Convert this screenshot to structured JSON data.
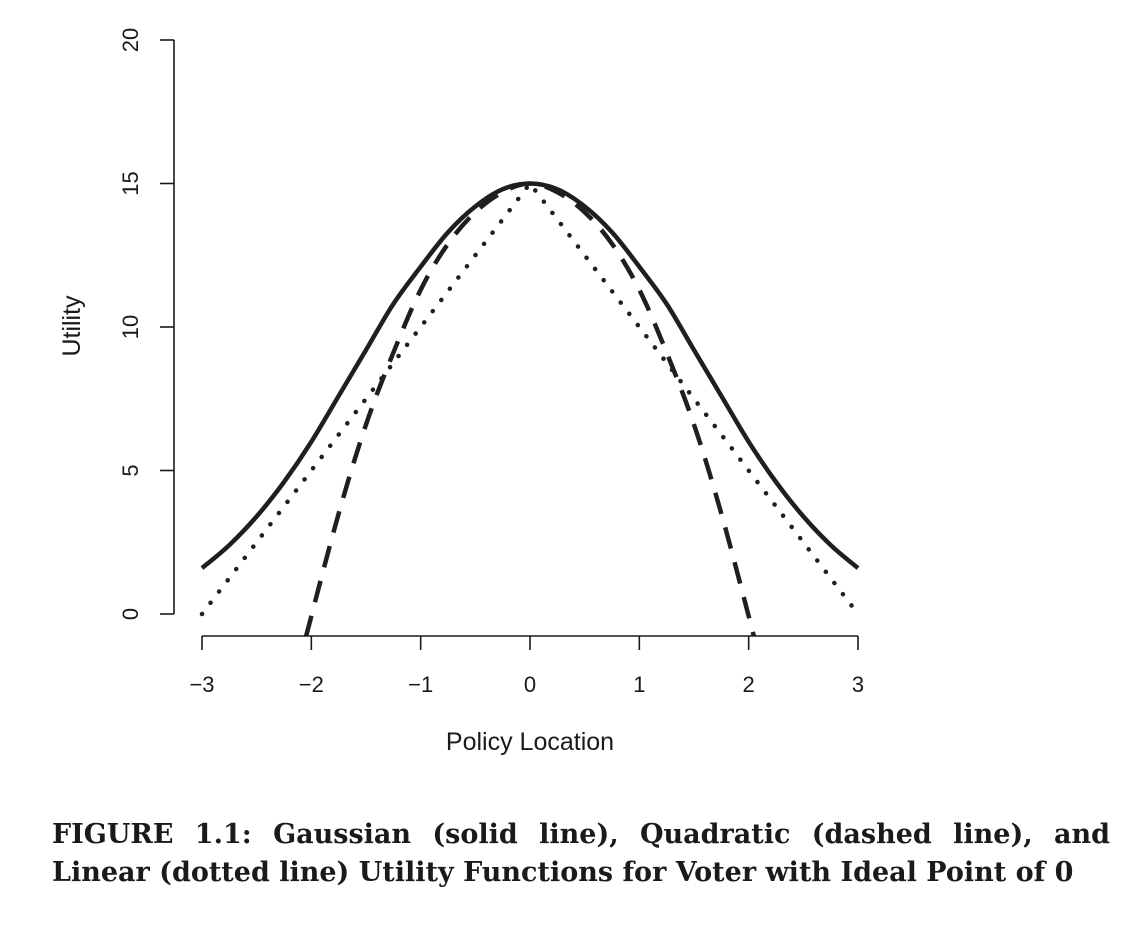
{
  "chart_data": {
    "type": "line",
    "xlabel": "Policy Location",
    "ylabel": "Utility",
    "xlim": [
      -3,
      3
    ],
    "ylim": [
      0,
      20
    ],
    "x_ticks": [
      -3,
      -2,
      -1,
      0,
      1,
      2,
      3
    ],
    "x_tick_labels": [
      "−3",
      "−2",
      "−1",
      "0",
      "1",
      "2",
      "3"
    ],
    "y_ticks": [
      0,
      5,
      10,
      15,
      20
    ],
    "y_tick_labels": [
      "0",
      "5",
      "10",
      "15",
      "20"
    ],
    "grid": false,
    "legend": "none",
    "series": [
      {
        "style": "solid",
        "x": [
          -3,
          -2.75,
          -2.5,
          -2.25,
          -2,
          -1.75,
          -1.5,
          -1.25,
          -1,
          -0.75,
          -0.5,
          -0.25,
          0,
          0.25,
          0.5,
          0.75,
          1,
          1.25,
          1.5,
          1.75,
          2,
          2.25,
          2.5,
          2.75,
          3
        ],
        "y": [
          1.6,
          2.4,
          3.4,
          4.6,
          6.0,
          7.6,
          9.2,
          10.8,
          12.1,
          13.3,
          14.2,
          14.8,
          15.0,
          14.8,
          14.2,
          13.3,
          12.1,
          10.8,
          9.2,
          7.6,
          6.0,
          4.6,
          3.4,
          2.4,
          1.6
        ]
      },
      {
        "style": "dashed",
        "x": [
          -2.05,
          -1.75,
          -1.5,
          -1.25,
          -1,
          -0.75,
          -0.5,
          -0.25,
          0,
          0.25,
          0.5,
          0.75,
          1,
          1.25,
          1.5,
          1.75,
          2.05
        ],
        "y": [
          -0.8,
          3.5,
          6.6,
          9.1,
          11.3,
          12.9,
          14.0,
          14.7,
          15.0,
          14.7,
          14.0,
          12.9,
          11.3,
          9.1,
          6.6,
          3.5,
          -0.8
        ]
      },
      {
        "style": "dotted",
        "x": [
          -3,
          0,
          3
        ],
        "y": [
          0,
          15,
          0
        ]
      }
    ]
  },
  "caption": "FIGURE 1.1: Gaussian (solid line), Quadratic (dashed line), and Linear (dotted line) Utility Functions for Voter with Ideal Point of 0"
}
